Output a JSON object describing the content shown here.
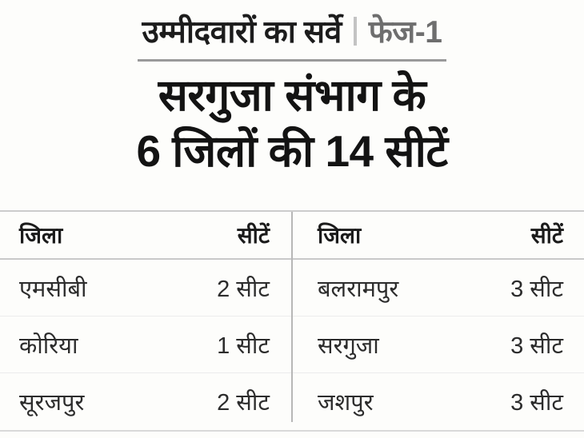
{
  "header": {
    "survey_label": "उम्मीदवारों का सर्वे",
    "phase_label": "फेज-1"
  },
  "title": {
    "line1": "सरगुजा संभाग के",
    "line2": "6 जिलों की 14 सीटें"
  },
  "table": {
    "left": {
      "headers": [
        "जिला",
        "सीटें"
      ],
      "rows": [
        {
          "district": "एमसीबी",
          "seats": "2 सीट"
        },
        {
          "district": "कोरिया",
          "seats": "1 सीट"
        },
        {
          "district": "सूरजपुर",
          "seats": "2 सीट"
        }
      ]
    },
    "right": {
      "headers": [
        "जिला",
        "सीटें"
      ],
      "rows": [
        {
          "district": "बलरामपुर",
          "seats": "3 सीट"
        },
        {
          "district": "सरगुजा",
          "seats": "3 सीट"
        },
        {
          "district": "जशपुर",
          "seats": "3 सीट"
        }
      ]
    }
  },
  "colors": {
    "title_text": "#131313",
    "phase_text": "#6e6e6e",
    "kicker_underline": "#9a9a9a",
    "divider": "#b7b7b7",
    "row_separator": "#ececec",
    "background": "#fdfdfb"
  },
  "chart_data": {
    "type": "table",
    "kicker": "उम्मीदवारों का सर्वे | फेज-1",
    "title": "सरगुजा संभाग के 6 जिलों की 14 सीटें",
    "columns": [
      "जिला",
      "सीटें"
    ],
    "rows": [
      [
        "एमसीबी",
        "2 सीट"
      ],
      [
        "कोरिया",
        "1 सीट"
      ],
      [
        "सूरजपुर",
        "2 सीट"
      ],
      [
        "बलरामपुर",
        "3 सीट"
      ],
      [
        "सरगुजा",
        "3 सीट"
      ],
      [
        "जशपुर",
        "3 सीट"
      ]
    ],
    "seat_values": [
      2,
      1,
      2,
      3,
      3,
      3
    ],
    "total_districts": 6,
    "total_seats": 14,
    "layout": "two side-by-side district/seat column pairs separated by a vertical rule"
  }
}
